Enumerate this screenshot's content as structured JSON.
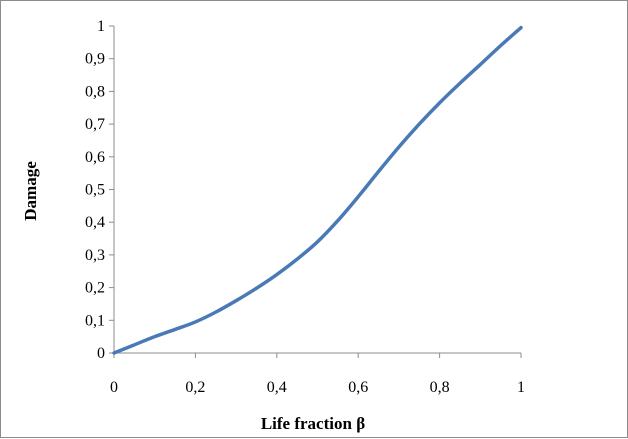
{
  "chart_data": {
    "type": "line",
    "title": "",
    "xlabel": "Life fraction β",
    "ylabel": "Damage",
    "xlim": [
      0,
      1
    ],
    "ylim": [
      0,
      1
    ],
    "x_ticks": [
      "0",
      "0,2",
      "0,4",
      "0,6",
      "0,8",
      "1"
    ],
    "y_ticks": [
      "0",
      "0,1",
      "0,2",
      "0,3",
      "0,4",
      "0,5",
      "0,6",
      "0,7",
      "0,8",
      "0,9",
      "1"
    ],
    "x_tick_values": [
      0,
      0.2,
      0.4,
      0.6,
      0.8,
      1
    ],
    "y_tick_values": [
      0,
      0.1,
      0.2,
      0.3,
      0.4,
      0.5,
      0.6,
      0.7,
      0.8,
      0.9,
      1
    ],
    "grid": false,
    "legend": "none",
    "series": [
      {
        "color": "#4a7ab5",
        "x": [
          0,
          0.05,
          0.1,
          0.15,
          0.2,
          0.25,
          0.3,
          0.35,
          0.4,
          0.45,
          0.5,
          0.55,
          0.6,
          0.65,
          0.7,
          0.75,
          0.8,
          0.85,
          0.9,
          0.95,
          1
        ],
        "y": [
          0,
          0.025,
          0.05,
          0.072,
          0.095,
          0.125,
          0.16,
          0.198,
          0.24,
          0.287,
          0.34,
          0.405,
          0.478,
          0.555,
          0.63,
          0.7,
          0.765,
          0.825,
          0.882,
          0.94,
          0.995
        ]
      }
    ]
  }
}
